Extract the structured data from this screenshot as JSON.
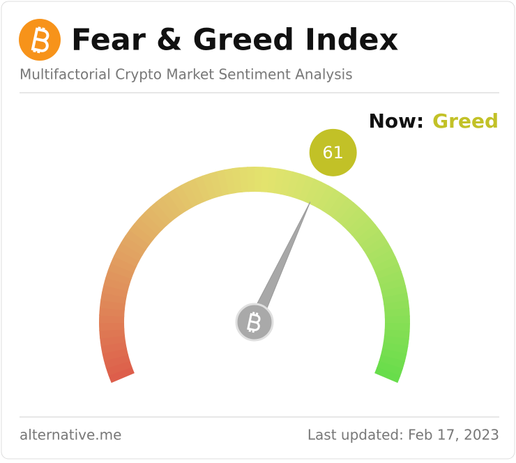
{
  "chart_data": {
    "type": "gauge",
    "title": "Fear & Greed Index",
    "subtitle": "Multifactorial Crypto Market Sentiment Analysis",
    "now_label": "Now:",
    "classification": "Greed",
    "value": 61,
    "ylim": [
      0,
      100
    ],
    "color": "#c2c127",
    "source": "alternative.me",
    "updated": "Last updated: Feb 17, 2023"
  }
}
